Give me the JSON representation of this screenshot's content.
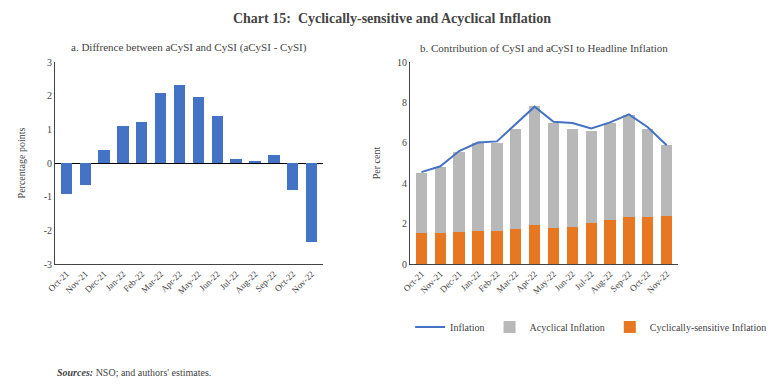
{
  "title": "Chart 15:  Cyclically-sensitive and Acyclical Inflation",
  "annotations": [
    "Sources: NSO; and authors' estimates."
  ],
  "chart_data": [
    {
      "type": "bar",
      "title": "a. Diffrence between aCySI and CySI (aCySI - CySI)",
      "categories": [
        "Oct-21",
        "Nov-21",
        "Dec-21",
        "Jan-22",
        "Feb-22",
        "Mar-22",
        "Apr-22",
        "May-22",
        "Jun-22",
        "Jul-22",
        "Aug-22",
        "Sep-22",
        "Oct-22",
        "Nov-22"
      ],
      "values": [
        -0.93,
        -0.65,
        0.4,
        1.1,
        1.22,
        2.07,
        2.32,
        1.95,
        1.4,
        0.12,
        0.07,
        0.25,
        -0.8,
        -2.35
      ],
      "color": "#4472c4",
      "y_label": "Percentage points",
      "ylim": [
        -3,
        3
      ],
      "yticks": [
        -3,
        -2,
        -1,
        0,
        1,
        2,
        3
      ],
      "grid": false
    },
    {
      "type": "bar",
      "title": "b. Contribution of CySI and aCySI to Headline Inflation",
      "categories": [
        "Oct-21",
        "Nov-21",
        "Dec-21",
        "Jan-22",
        "Feb-22",
        "Mar-22",
        "Apr-22",
        "May-22",
        "Jun-22",
        "Jul-22",
        "Aug-22",
        "Sep-22",
        "Oct-22",
        "Nov-22"
      ],
      "stacked": true,
      "series": [
        {
          "name": "Cyclically-sensitive Inflation",
          "color": "#e87722",
          "values": [
            1.55,
            1.55,
            1.6,
            1.65,
            1.62,
            1.75,
            1.95,
            1.8,
            1.85,
            2.05,
            2.18,
            2.32,
            2.32,
            2.38
          ]
        },
        {
          "name": "Acyclical Inflation",
          "color": "#b8b8b8",
          "values": [
            2.95,
            3.25,
            3.95,
            4.35,
            4.38,
            4.95,
            5.85,
            5.2,
            4.85,
            4.55,
            4.82,
            5.08,
            4.38,
            3.52
          ]
        },
        {
          "name": "Inflation",
          "type": "line",
          "color": "#4472c4",
          "values": [
            4.55,
            4.84,
            5.59,
            6.01,
            6.07,
            6.95,
            7.79,
            7.04,
            6.98,
            6.71,
            7.01,
            7.41,
            6.77,
            5.88
          ]
        }
      ],
      "y_label": "Per cent",
      "ylim": [
        0,
        10
      ],
      "yticks": [
        0,
        2,
        4,
        6,
        8,
        10
      ],
      "grid": false,
      "legend": "bottom"
    }
  ]
}
